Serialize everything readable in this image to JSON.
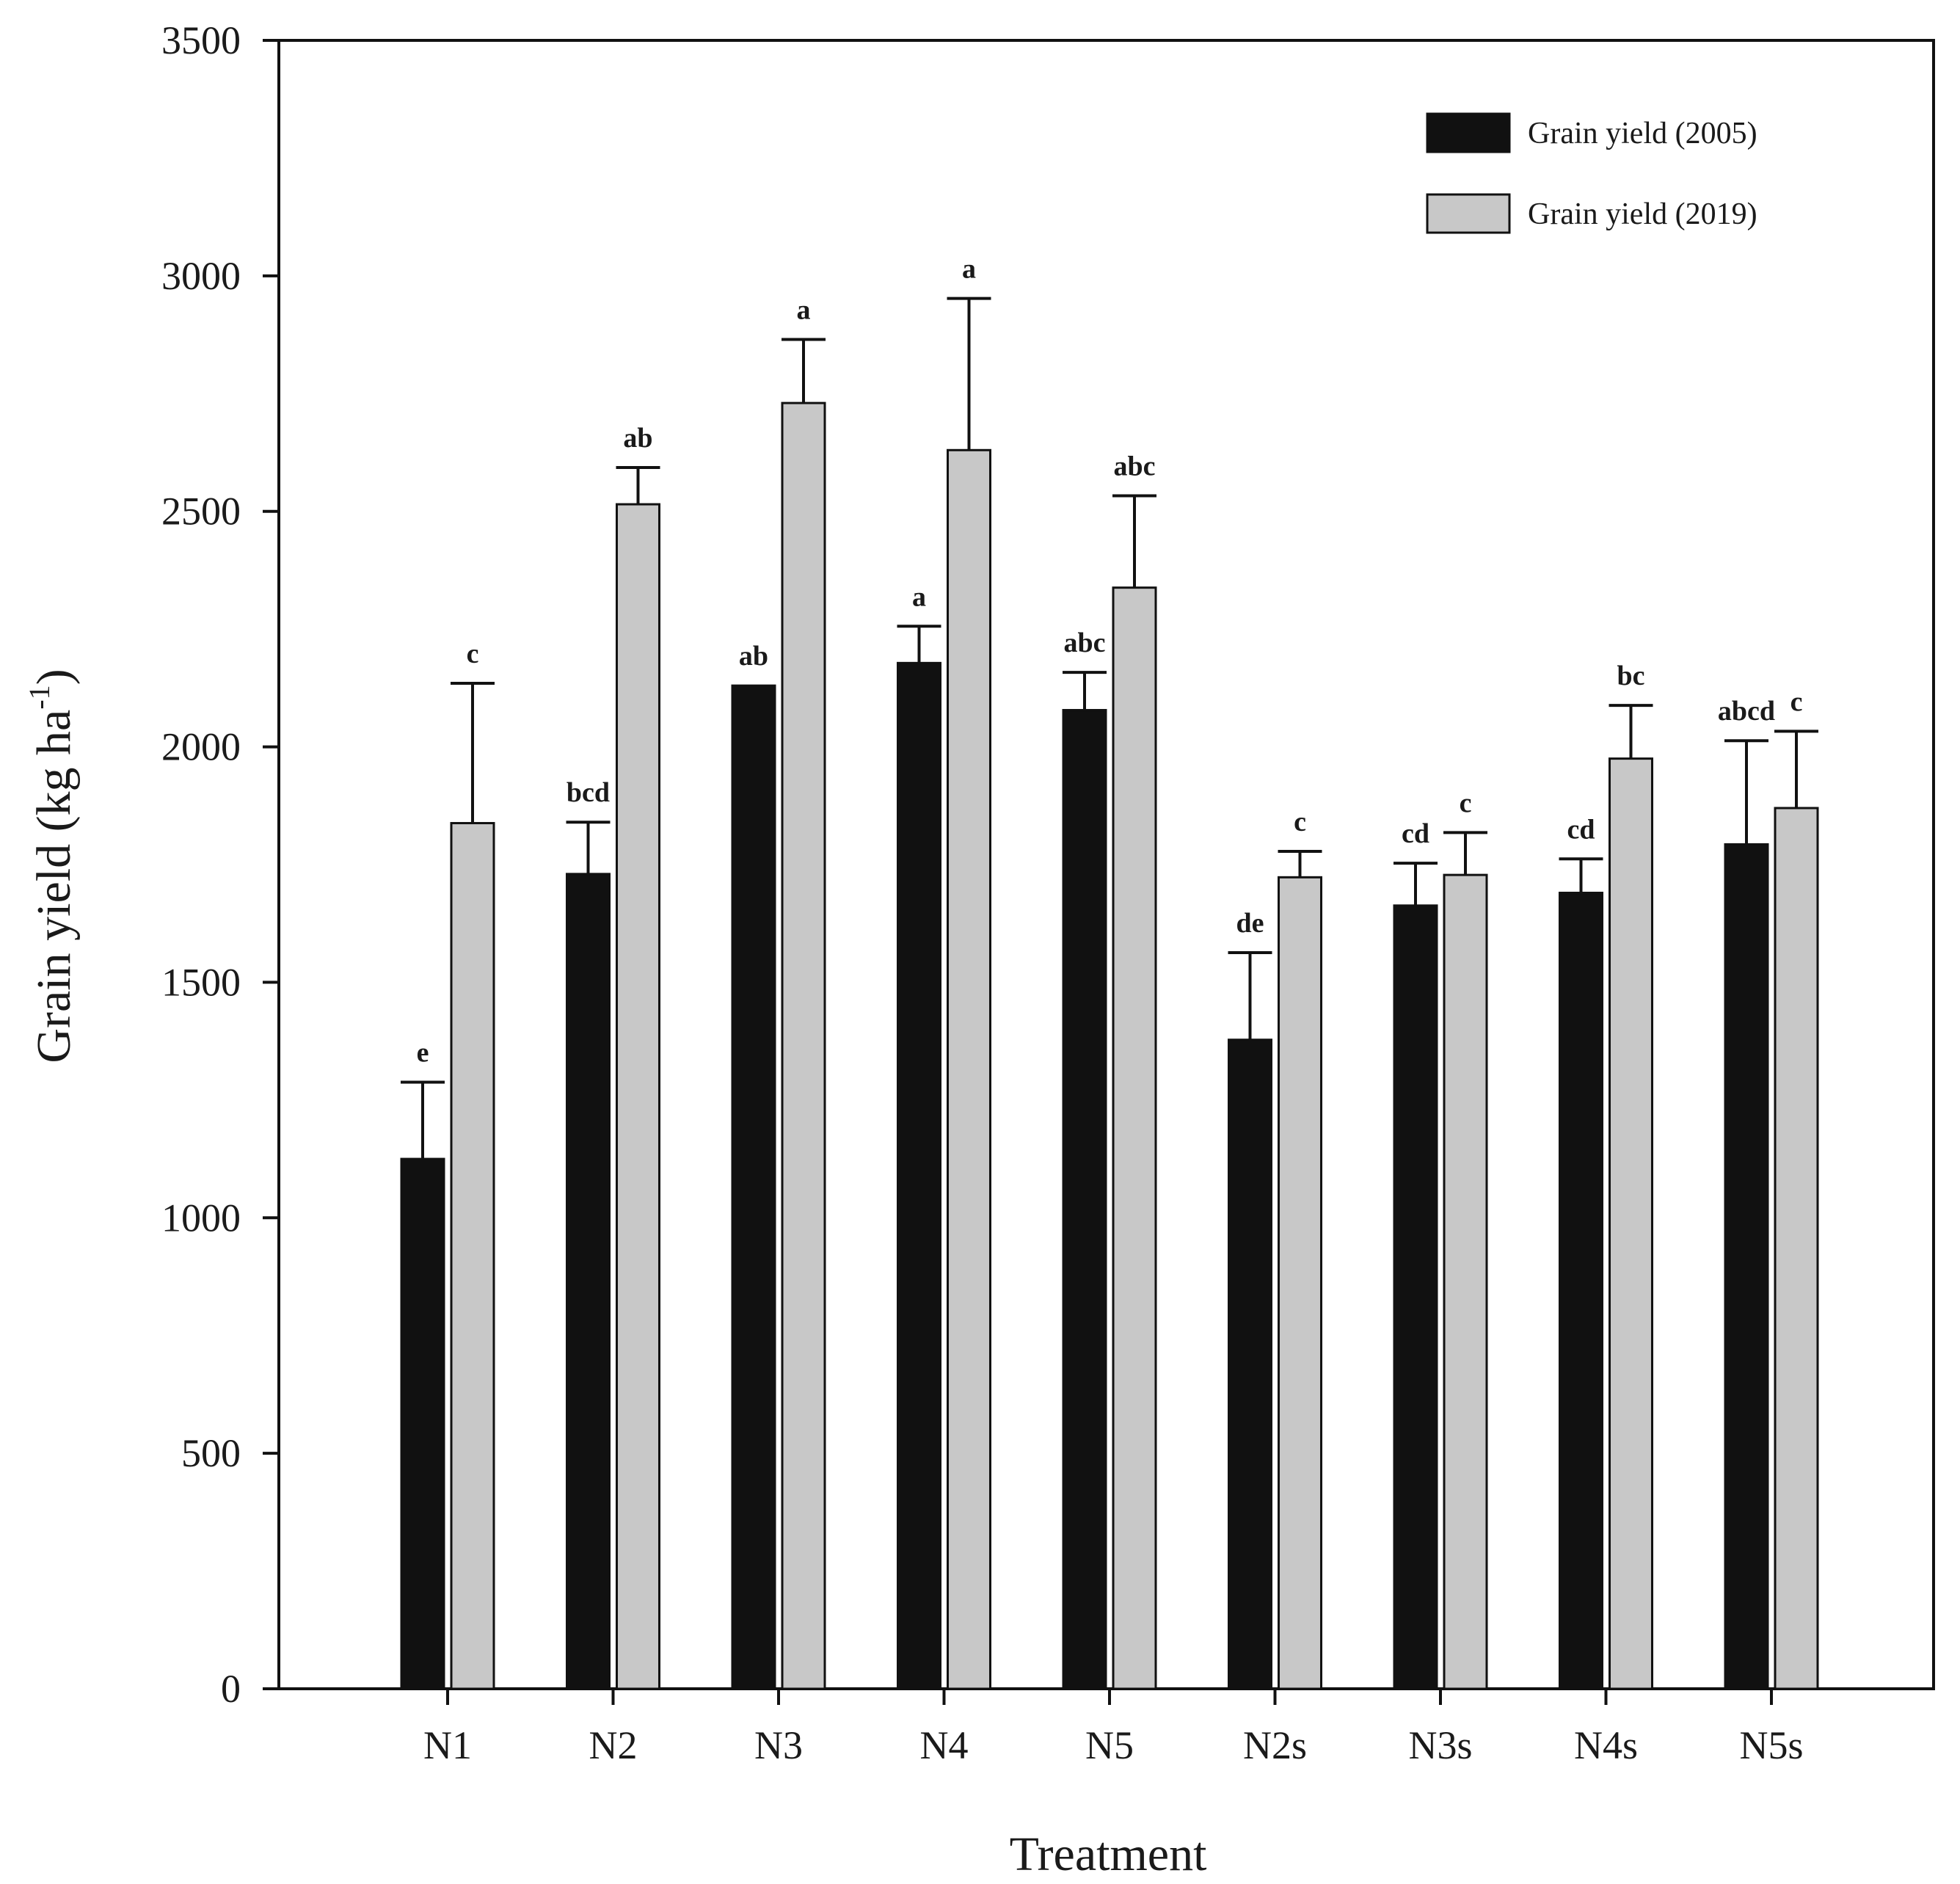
{
  "chart_data": {
    "type": "bar",
    "title": "",
    "xlabel": "Treatment",
    "ylabel": "Grain yield (kg ha",
    "ylabel_sup": "-1",
    "ylabel_close": ")",
    "ylim": [
      0,
      3500
    ],
    "yticks": [
      "0",
      "500",
      "1000",
      "1500",
      "2000",
      "2500",
      "3000",
      "3500"
    ],
    "categories": [
      "N1",
      "N2",
      "N3",
      "N4",
      "N5",
      "N2s",
      "N3s",
      "N4s",
      "N5s"
    ],
    "legend_position": "top-right",
    "series": [
      {
        "name": "Grain yield (2005)",
        "color": "#111111",
        "values": [
          1125,
          1730,
          2130,
          2178,
          2078,
          1378,
          1663,
          1690,
          1793
        ],
        "errors": [
          163,
          110,
          0,
          78,
          80,
          185,
          90,
          72,
          220
        ],
        "letters": [
          "e",
          "bcd",
          "ab",
          "a",
          "abc",
          "de",
          "cd",
          "cd",
          "abcd"
        ]
      },
      {
        "name": "Grain yield (2019)",
        "color": "#c8c8c8",
        "values": [
          1838,
          2515,
          2730,
          2630,
          2338,
          1723,
          1728,
          1975,
          1870
        ],
        "errors": [
          297,
          78,
          135,
          322,
          195,
          55,
          90,
          113,
          163
        ],
        "letters": [
          "c",
          "ab",
          "a",
          "a",
          "abc",
          "c",
          "c",
          "bc",
          "c"
        ]
      }
    ]
  }
}
